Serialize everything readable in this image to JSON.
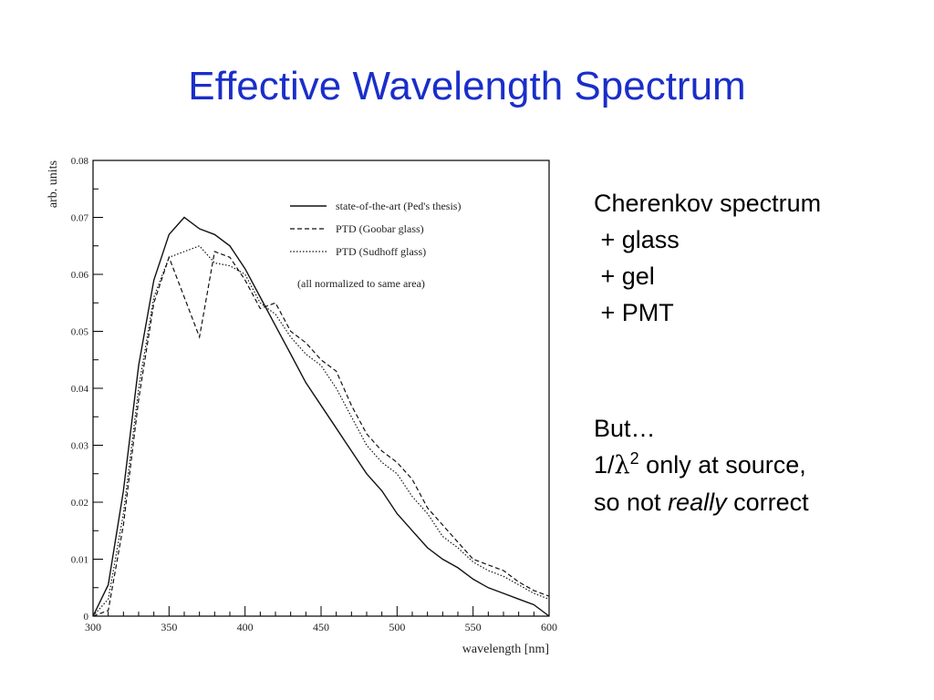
{
  "slide": {
    "title": "Effective Wavelength Spectrum"
  },
  "notes": {
    "lines": [
      "Cherenkov spectrum",
      " + glass",
      " + gel",
      " + PMT"
    ]
  },
  "caveat": {
    "line1": "But…",
    "line2_prefix": "1/",
    "line2_lambda": "λ",
    "line2_power": "2",
    "line2_suffix": " only at source,",
    "line3_prefix": "so not ",
    "line3_emph": "really",
    "line3_suffix": " correct"
  },
  "chart_data": {
    "type": "line",
    "xlabel": "wavelength [nm]",
    "ylabel": "arb. units",
    "xlim": [
      300,
      600
    ],
    "ylim": [
      0,
      0.08
    ],
    "xticks": [
      300,
      350,
      400,
      450,
      500,
      550,
      600
    ],
    "yticks": [
      0,
      0.01,
      0.02,
      0.03,
      0.04,
      0.05,
      0.06,
      0.07,
      0.08
    ],
    "ytick_labels": [
      "0",
      "0.01",
      "0.02",
      "0.03",
      "0.04",
      "0.05",
      "0.06",
      "0.07",
      "0.08"
    ],
    "grid": false,
    "legend_position": "top-right",
    "annotation": "(all normalized to same area)",
    "series": [
      {
        "name": "state-of-the-art (Ped's thesis)",
        "style": "solid",
        "x": [
          300,
          310,
          320,
          330,
          340,
          350,
          360,
          370,
          380,
          390,
          400,
          410,
          420,
          430,
          440,
          450,
          460,
          470,
          480,
          490,
          500,
          510,
          520,
          530,
          540,
          550,
          560,
          570,
          580,
          590,
          600
        ],
        "y": [
          0,
          0.0055,
          0.022,
          0.044,
          0.059,
          0.067,
          0.07,
          0.068,
          0.067,
          0.065,
          0.061,
          0.056,
          0.051,
          0.046,
          0.041,
          0.037,
          0.033,
          0.029,
          0.025,
          0.022,
          0.018,
          0.015,
          0.012,
          0.01,
          0.0085,
          0.0065,
          0.005,
          0.004,
          0.003,
          0.002,
          0
        ]
      },
      {
        "name": "PTD (Goobar glass)",
        "style": "dashed",
        "x": [
          300,
          310,
          320,
          330,
          340,
          350,
          360,
          370,
          380,
          390,
          400,
          410,
          420,
          430,
          440,
          450,
          460,
          470,
          480,
          490,
          500,
          510,
          520,
          530,
          540,
          550,
          560,
          570,
          580,
          590,
          600
        ],
        "y": [
          0,
          0.001,
          0.016,
          0.038,
          0.055,
          0.063,
          0.056,
          0.049,
          0.064,
          0.063,
          0.059,
          0.054,
          0.055,
          0.05,
          0.048,
          0.045,
          0.043,
          0.037,
          0.032,
          0.029,
          0.027,
          0.024,
          0.019,
          0.016,
          0.013,
          0.01,
          0.009,
          0.008,
          0.006,
          0.0045,
          0.0035
        ]
      },
      {
        "name": "PTD (Sudhoff glass)",
        "style": "dotted",
        "x": [
          300,
          310,
          320,
          330,
          340,
          350,
          360,
          370,
          380,
          390,
          400,
          410,
          420,
          430,
          440,
          450,
          460,
          470,
          480,
          490,
          500,
          510,
          520,
          530,
          540,
          550,
          560,
          570,
          580,
          590,
          600
        ],
        "y": [
          0,
          0.003,
          0.018,
          0.04,
          0.056,
          0.063,
          0.064,
          0.065,
          0.062,
          0.0615,
          0.06,
          0.055,
          0.053,
          0.049,
          0.046,
          0.044,
          0.04,
          0.035,
          0.03,
          0.027,
          0.025,
          0.021,
          0.018,
          0.014,
          0.012,
          0.0095,
          0.008,
          0.007,
          0.0055,
          0.004,
          0.003
        ]
      }
    ]
  }
}
